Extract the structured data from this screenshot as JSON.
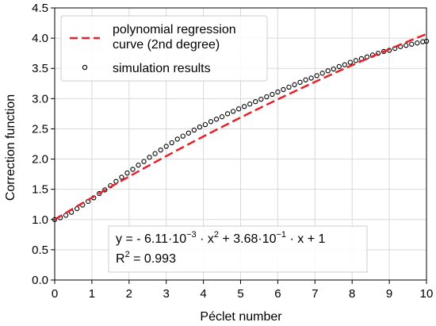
{
  "chart_data": {
    "type": "scatter",
    "title": "",
    "xlabel": "Péclet number",
    "ylabel": "Correction function",
    "xlim": [
      0,
      10
    ],
    "ylim": [
      0,
      4.5
    ],
    "xticks": [
      "0",
      "1",
      "2",
      "3",
      "4",
      "5",
      "6",
      "7",
      "8",
      "9",
      "10"
    ],
    "yticks": [
      "0.0",
      "0.5",
      "1.0",
      "1.5",
      "2.0",
      "2.5",
      "3.0",
      "3.5",
      "4.0",
      "4.5"
    ],
    "grid": true,
    "legend_position": "top-left",
    "series": [
      {
        "name": "polynomial regression curve (2nd degree)",
        "kind": "line",
        "style": "dashed",
        "color": "#e8202a",
        "formula": {
          "a": -0.00611,
          "b": 0.368,
          "c": 1
        },
        "x": [
          0,
          1,
          2,
          3,
          4,
          5,
          6,
          7,
          8,
          9,
          10
        ],
        "y": [
          1.0,
          1.362,
          1.711,
          2.049,
          2.374,
          2.687,
          2.988,
          3.277,
          3.553,
          3.817,
          4.069
        ]
      },
      {
        "name": "simulation results",
        "kind": "scatter",
        "marker": "open-circle",
        "color": "#000000",
        "points": [
          [
            0.0,
            1.0
          ],
          [
            0.15,
            1.03
          ],
          [
            0.3,
            1.07
          ],
          [
            0.45,
            1.12
          ],
          [
            0.6,
            1.18
          ],
          [
            0.75,
            1.24
          ],
          [
            0.9,
            1.3
          ],
          [
            1.05,
            1.36
          ],
          [
            1.2,
            1.43
          ],
          [
            1.35,
            1.49
          ],
          [
            1.5,
            1.56
          ],
          [
            1.65,
            1.63
          ],
          [
            1.8,
            1.7
          ],
          [
            1.95,
            1.77
          ],
          [
            2.1,
            1.83
          ],
          [
            2.25,
            1.9
          ],
          [
            2.4,
            1.96
          ],
          [
            2.55,
            2.03
          ],
          [
            2.7,
            2.09
          ],
          [
            2.85,
            2.15
          ],
          [
            3.0,
            2.21
          ],
          [
            3.15,
            2.27
          ],
          [
            3.3,
            2.33
          ],
          [
            3.45,
            2.38
          ],
          [
            3.6,
            2.43
          ],
          [
            3.75,
            2.48
          ],
          [
            3.9,
            2.53
          ],
          [
            4.05,
            2.57
          ],
          [
            4.2,
            2.62
          ],
          [
            4.35,
            2.66
          ],
          [
            4.5,
            2.7
          ],
          [
            4.65,
            2.75
          ],
          [
            4.8,
            2.79
          ],
          [
            4.95,
            2.83
          ],
          [
            5.1,
            2.87
          ],
          [
            5.25,
            2.91
          ],
          [
            5.4,
            2.95
          ],
          [
            5.55,
            2.99
          ],
          [
            5.7,
            3.03
          ],
          [
            5.85,
            3.07
          ],
          [
            6.0,
            3.11
          ],
          [
            6.15,
            3.15
          ],
          [
            6.3,
            3.19
          ],
          [
            6.45,
            3.23
          ],
          [
            6.6,
            3.27
          ],
          [
            6.75,
            3.31
          ],
          [
            6.9,
            3.34
          ],
          [
            7.05,
            3.38
          ],
          [
            7.2,
            3.42
          ],
          [
            7.35,
            3.46
          ],
          [
            7.5,
            3.49
          ],
          [
            7.65,
            3.53
          ],
          [
            7.8,
            3.56
          ],
          [
            7.95,
            3.6
          ],
          [
            8.1,
            3.63
          ],
          [
            8.25,
            3.66
          ],
          [
            8.4,
            3.69
          ],
          [
            8.55,
            3.72
          ],
          [
            8.7,
            3.75
          ],
          [
            8.85,
            3.78
          ],
          [
            9.0,
            3.8
          ],
          [
            9.15,
            3.83
          ],
          [
            9.3,
            3.86
          ],
          [
            9.45,
            3.88
          ],
          [
            9.6,
            3.9
          ],
          [
            9.75,
            3.92
          ],
          [
            9.9,
            3.94
          ],
          [
            10.0,
            3.95
          ]
        ]
      }
    ],
    "annotation": {
      "equation": "y = - 6.11·10",
      "eq_exp1": "−3",
      "eq_mid": " · x",
      "eq_exp2": "2",
      "eq_mid2": " + 3.68·10",
      "eq_exp3": "−1",
      "eq_end": " · x + 1",
      "r2_label": "R",
      "r2_exp": "2",
      "r2_value": " = 0.993"
    }
  }
}
